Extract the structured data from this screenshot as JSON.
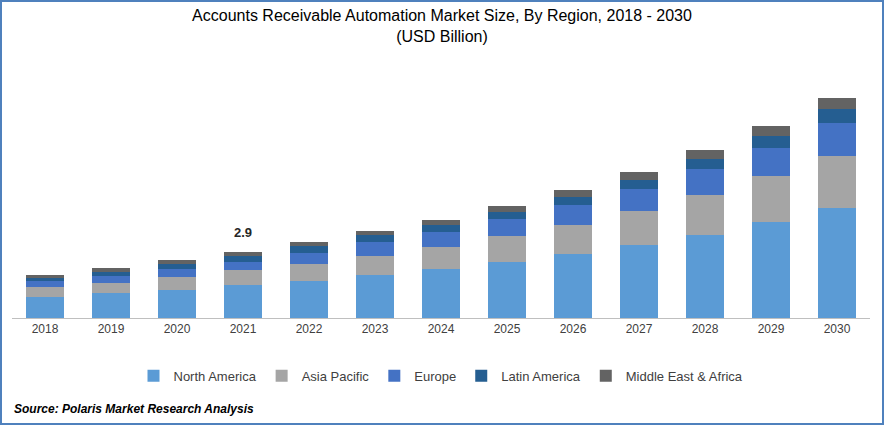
{
  "chart_data": {
    "type": "bar",
    "stacked": true,
    "title": "Accounts Receivable Automation Market Size, By Region, 2018 - 2030",
    "subtitle": "(USD Billion)",
    "source": "Source: Polaris Market Research Analysis",
    "categories": [
      "2018",
      "2019",
      "2020",
      "2021",
      "2022",
      "2023",
      "2024",
      "2025",
      "2026",
      "2027",
      "2028",
      "2029",
      "2030"
    ],
    "series": [
      {
        "name": "North America",
        "color": "#5b9bd5",
        "values": [
          0.94,
          1.08,
          1.25,
          1.43,
          1.61,
          1.88,
          2.14,
          2.46,
          2.81,
          3.21,
          3.66,
          4.2,
          4.82
        ]
      },
      {
        "name": "Asia Pacific",
        "color": "#a5a5a5",
        "values": [
          0.4,
          0.47,
          0.57,
          0.67,
          0.76,
          0.85,
          0.98,
          1.12,
          1.29,
          1.47,
          1.74,
          2.01,
          2.28
        ]
      },
      {
        "name": "Europe",
        "color": "#4472c4",
        "values": [
          0.27,
          0.31,
          0.33,
          0.36,
          0.49,
          0.62,
          0.67,
          0.76,
          0.85,
          0.98,
          1.12,
          1.25,
          1.47
        ]
      },
      {
        "name": "Latin America",
        "color": "#255e91",
        "values": [
          0.13,
          0.17,
          0.22,
          0.27,
          0.28,
          0.27,
          0.31,
          0.31,
          0.36,
          0.4,
          0.45,
          0.54,
          0.58
        ]
      },
      {
        "name": "Middle East & Africa",
        "color": "#636363",
        "values": [
          0.13,
          0.15,
          0.16,
          0.17,
          0.2,
          0.18,
          0.22,
          0.25,
          0.31,
          0.36,
          0.4,
          0.44,
          0.49
        ]
      }
    ],
    "annotations": [
      {
        "category": "2021",
        "value": 2.9,
        "text": "2.9"
      }
    ],
    "ylim": [
      0,
      10
    ],
    "yticks": [
      0,
      10
    ],
    "grid": false,
    "legend": "bottom",
    "tick_labels": "x"
  }
}
